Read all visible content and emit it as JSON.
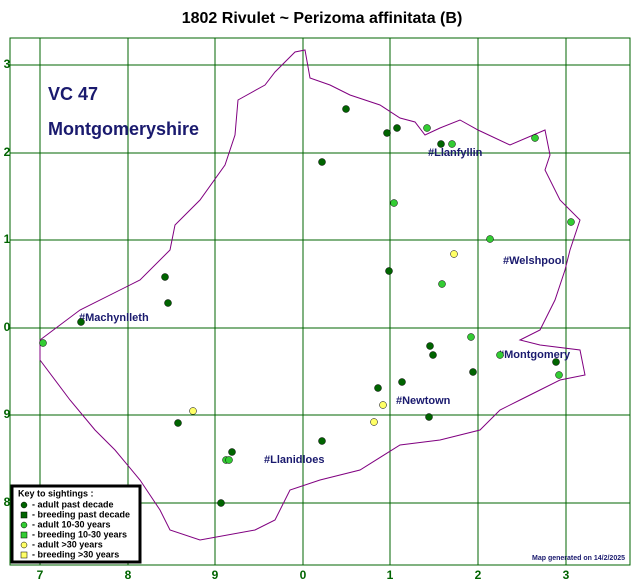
{
  "title": "1802 Rivulet ~ Perizoma affinitata (B)",
  "vc": "VC 47",
  "county": "Montgomeryshire",
  "y_labels": [
    "3",
    "2",
    "1",
    "0",
    "9",
    "8"
  ],
  "x_labels": [
    "7",
    "8",
    "9",
    "0",
    "1",
    "2",
    "3"
  ],
  "places": [
    "#Llanfyllin",
    "#Welshpool",
    "#Machynlleth",
    "#Montgomery",
    "#Newtown",
    "#Llanidloes"
  ],
  "key": {
    "title": "Key to sightings :",
    "items": [
      "- adult past decade",
      "- breeding past decade",
      "- adult 10-30 years",
      "- breeding 10-30 years",
      "- adult >30 years",
      "- breeding >30 years"
    ]
  },
  "footer": "Map generated on 14/2/2025"
}
